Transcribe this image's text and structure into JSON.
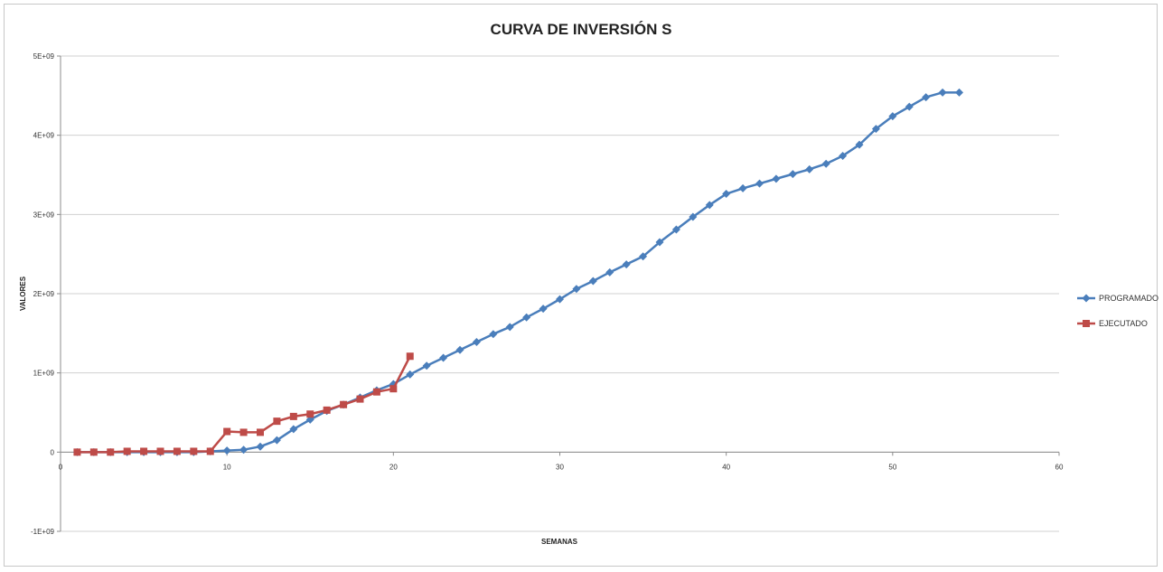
{
  "chart_data": {
    "type": "line",
    "title": "CURVA DE INVERSIÓN S",
    "xlabel": "SEMANAS",
    "ylabel": "VALORES",
    "xlim": [
      0,
      60
    ],
    "ylim": [
      -1000000000,
      5000000000
    ],
    "x_ticks": [
      {
        "value": 0,
        "label": "0"
      },
      {
        "value": 10,
        "label": "10"
      },
      {
        "value": 20,
        "label": "20"
      },
      {
        "value": 30,
        "label": "30"
      },
      {
        "value": 40,
        "label": "40"
      },
      {
        "value": 50,
        "label": "50"
      },
      {
        "value": 60,
        "label": "60"
      }
    ],
    "y_ticks": [
      {
        "value": -1000000000,
        "label": "-1E+09"
      },
      {
        "value": 0,
        "label": "0"
      },
      {
        "value": 1000000000,
        "label": "1E+09"
      },
      {
        "value": 2000000000,
        "label": "2E+09"
      },
      {
        "value": 3000000000,
        "label": "3E+09"
      },
      {
        "value": 4000000000,
        "label": "4E+09"
      },
      {
        "value": 5000000000,
        "label": "5E+09"
      }
    ],
    "grid": "horizontal",
    "legend_position": "right",
    "series": [
      {
        "name": "PROGRAMADO",
        "color": "#4a7ebb",
        "marker": "diamond",
        "x": [
          1,
          2,
          3,
          4,
          5,
          6,
          7,
          8,
          9,
          10,
          11,
          12,
          13,
          14,
          15,
          16,
          17,
          18,
          19,
          20,
          21,
          22,
          23,
          24,
          25,
          26,
          27,
          28,
          29,
          30,
          31,
          32,
          33,
          34,
          35,
          36,
          37,
          38,
          39,
          40,
          41,
          42,
          43,
          44,
          45,
          46,
          47,
          48,
          49,
          50,
          51,
          52,
          53,
          54
        ],
        "y": [
          0,
          0,
          0,
          0,
          0,
          0,
          0,
          0,
          10000000,
          20000000,
          30000000,
          70000000,
          150000000,
          290000000,
          410000000,
          520000000,
          600000000,
          690000000,
          780000000,
          860000000,
          980000000,
          1090000000,
          1190000000,
          1290000000,
          1390000000,
          1490000000,
          1580000000,
          1700000000,
          1810000000,
          1930000000,
          2060000000,
          2160000000,
          2270000000,
          2370000000,
          2470000000,
          2650000000,
          2810000000,
          2970000000,
          3120000000,
          3260000000,
          3330000000,
          3390000000,
          3450000000,
          3510000000,
          3570000000,
          3640000000,
          3740000000,
          3880000000,
          4080000000,
          4240000000,
          4360000000,
          4480000000,
          4540000000,
          4540000000
        ]
      },
      {
        "name": "EJECUTADO",
        "color": "#be4b48",
        "marker": "square",
        "x": [
          1,
          2,
          3,
          4,
          5,
          6,
          7,
          8,
          9,
          10,
          11,
          12,
          13,
          14,
          15,
          16,
          17,
          18,
          19,
          20,
          21
        ],
        "y": [
          0,
          0,
          0,
          10000000,
          10000000,
          10000000,
          10000000,
          10000000,
          10000000,
          260000000,
          250000000,
          250000000,
          390000000,
          450000000,
          480000000,
          530000000,
          600000000,
          670000000,
          760000000,
          800000000,
          1210000000
        ]
      }
    ]
  }
}
